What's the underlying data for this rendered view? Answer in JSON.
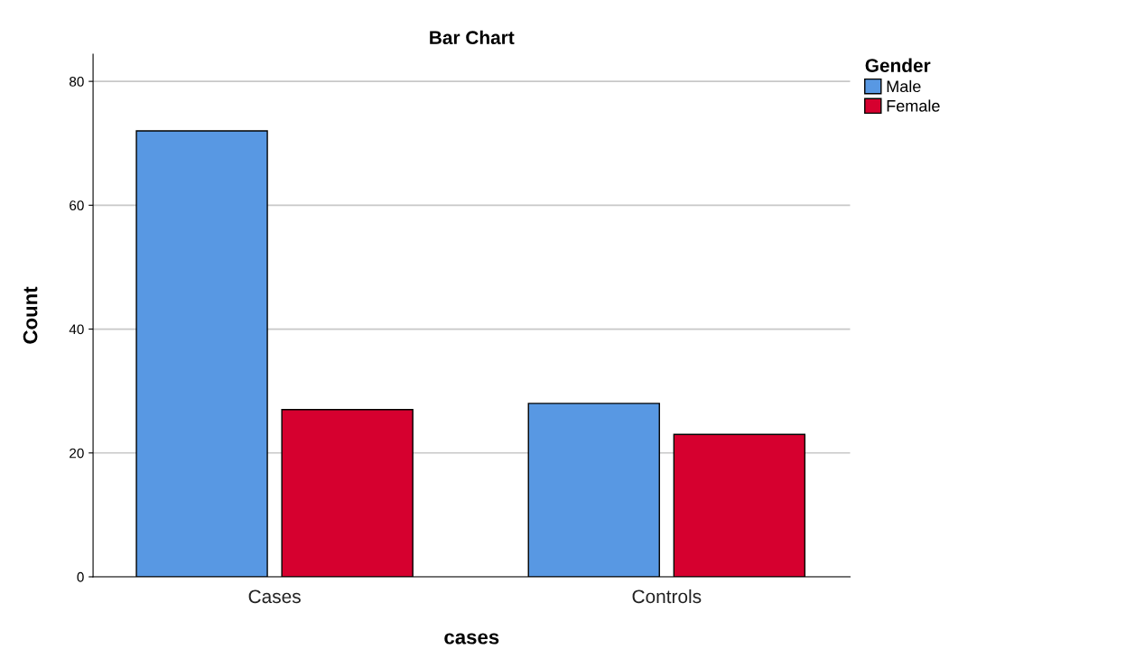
{
  "chart_data": {
    "type": "bar",
    "title": "Bar Chart",
    "xlabel": "cases",
    "ylabel": "Count",
    "legend_title": "Gender",
    "categories": [
      "Cases",
      "Controls"
    ],
    "series": [
      {
        "name": "Male",
        "color": "#5898e3",
        "values": [
          72,
          28
        ]
      },
      {
        "name": "Female",
        "color": "#d6002f",
        "values": [
          27,
          23
        ]
      }
    ],
    "ylim": [
      0,
      84.4
    ],
    "yticks": [
      0,
      20,
      40,
      60,
      80
    ],
    "grid": "y",
    "legend": "top right"
  }
}
